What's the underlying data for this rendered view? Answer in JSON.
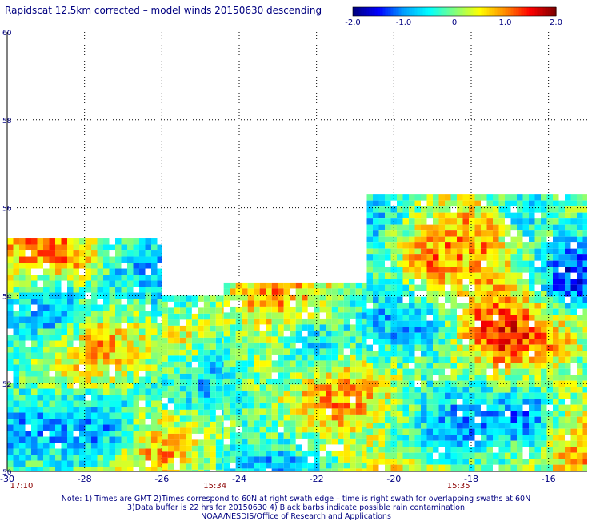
{
  "chart_data": {
    "type": "heatmap",
    "title": "Rapidscat 12.5km corrected – model winds 20150630 descending",
    "xlim": [
      -30,
      -15
    ],
    "ylim": [
      50,
      60
    ],
    "x_ticks": [
      {
        "v": -30,
        "label": "-30"
      },
      {
        "v": -28,
        "label": "-28"
      },
      {
        "v": -26,
        "label": "-26"
      },
      {
        "v": -24,
        "label": "-24"
      },
      {
        "v": -22,
        "label": "-22"
      },
      {
        "v": -20,
        "label": "-20"
      },
      {
        "v": -18,
        "label": "-18"
      },
      {
        "v": -16,
        "label": "-16"
      }
    ],
    "y_ticks": [
      {
        "v": 50,
        "label": "50"
      },
      {
        "v": 52,
        "label": "52"
      },
      {
        "v": 54,
        "label": "54"
      },
      {
        "v": 56,
        "label": "56"
      },
      {
        "v": 58,
        "label": "58"
      },
      {
        "v": 60,
        "label": "60"
      }
    ],
    "grid": true,
    "colorbar": {
      "min": -2.0,
      "max": 2.0,
      "ticks": [
        {
          "v": -2.0,
          "label": "-2.0"
        },
        {
          "v": -1.0,
          "label": "-1.0"
        },
        {
          "v": 0,
          "label": "0"
        },
        {
          "v": 1.0,
          "label": "1.0"
        },
        {
          "v": 2.0,
          "label": "2.0"
        }
      ],
      "stops": [
        "#00007f",
        "#0000ff",
        "#00a0ff",
        "#00ffff",
        "#7fff7f",
        "#ffff00",
        "#ff8c00",
        "#ff0000",
        "#7f0000"
      ]
    },
    "times": [
      {
        "lon": -30,
        "label": "17:10"
      },
      {
        "lon": -25,
        "label": "15:34"
      },
      {
        "lon": -18.7,
        "label": "15:35"
      }
    ],
    "swaths": [
      {
        "lon_range": [
          -30,
          -26
        ],
        "lat_top": 55.3
      },
      {
        "lon_range": [
          -26,
          -24.4
        ],
        "lat_top": 54.0
      },
      {
        "lon_range": [
          -24.4,
          -20.7
        ],
        "lat_top": 54.3
      },
      {
        "lon_range": [
          -20.7,
          -15
        ],
        "lat_top": 56.3
      }
    ],
    "notes": [
      "Note: 1) Times are GMT 2)Times correspond to 60N at right swath edge – time is right swath for overlapping swaths at 60N",
      "3)Data buffer is 22 hrs for 20150630 4) Black barbs indicate possible rain contamination",
      "NOAA/NESDIS/Office of Research and Applications"
    ]
  }
}
